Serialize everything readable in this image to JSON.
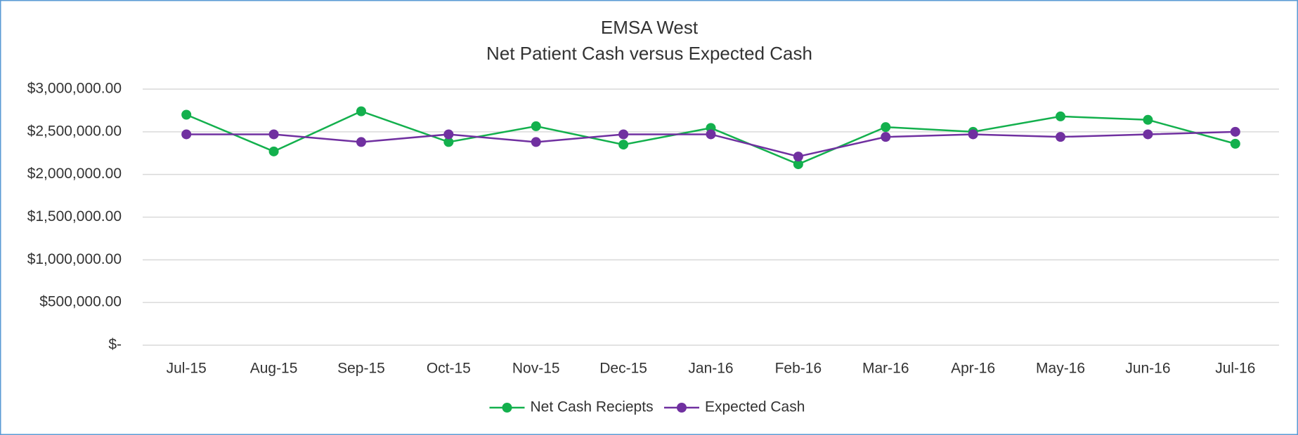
{
  "chart_data": {
    "type": "line",
    "title": "EMSA West",
    "subtitle": "Net Patient Cash versus Expected Cash",
    "categories": [
      "Jul-15",
      "Aug-15",
      "Sep-15",
      "Oct-15",
      "Nov-15",
      "Dec-15",
      "Jan-16",
      "Feb-16",
      "Mar-16",
      "Apr-16",
      "May-16",
      "Jun-16",
      "Jul-16"
    ],
    "series": [
      {
        "name": "Net Cash Reciepts",
        "color": "#13b04d",
        "values": [
          2700000,
          2270000,
          2740000,
          2380000,
          2565000,
          2350000,
          2545000,
          2120000,
          2555000,
          2500000,
          2680000,
          2640000,
          2360000
        ]
      },
      {
        "name": "Expected Cash",
        "color": "#7030a0",
        "values": [
          2470000,
          2470000,
          2380000,
          2470000,
          2380000,
          2470000,
          2470000,
          2210000,
          2440000,
          2470000,
          2440000,
          2470000,
          2500000
        ]
      }
    ],
    "ylim": [
      0,
      3000000
    ],
    "yticks": [
      {
        "value": 0,
        "label": "$-"
      },
      {
        "value": 500000,
        "label": "$500,000.00"
      },
      {
        "value": 1000000,
        "label": "$1,000,000.00"
      },
      {
        "value": 1500000,
        "label": "$1,500,000.00"
      },
      {
        "value": 2000000,
        "label": "$2,000,000.00"
      },
      {
        "value": 2500000,
        "label": "$2,500,000.00"
      },
      {
        "value": 3000000,
        "label": "$3,000,000.00"
      }
    ],
    "grid": true,
    "legend": "bottom"
  }
}
